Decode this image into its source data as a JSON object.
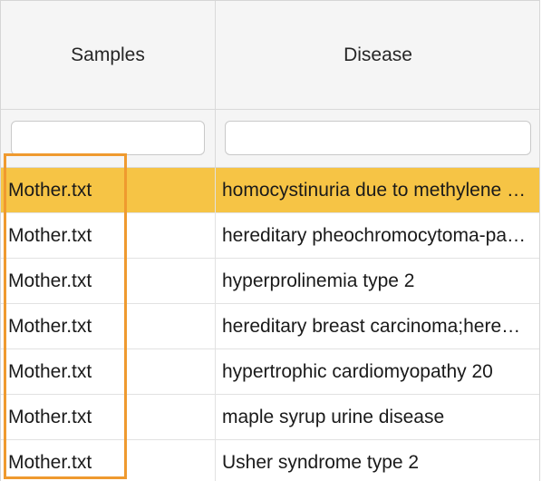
{
  "table": {
    "columns": [
      {
        "label": "Samples"
      },
      {
        "label": "Disease"
      }
    ],
    "filters": [
      {
        "value": "",
        "placeholder": ""
      },
      {
        "value": "",
        "placeholder": ""
      }
    ],
    "rows": [
      {
        "sample": "Mother.txt",
        "disease": "homocystinuria due to methylene tetrahydrofolate reductase deficiency",
        "selected": true
      },
      {
        "sample": "Mother.txt",
        "disease": "hereditary pheochromocytoma-paraganglioma",
        "selected": false
      },
      {
        "sample": "Mother.txt",
        "disease": "hyperprolinemia type 2",
        "selected": false
      },
      {
        "sample": "Mother.txt",
        "disease": "hereditary breast carcinoma;hereditary ovarian cancer",
        "selected": false
      },
      {
        "sample": "Mother.txt",
        "disease": "hypertrophic cardiomyopathy 20",
        "selected": false
      },
      {
        "sample": "Mother.txt",
        "disease": "maple syrup urine disease",
        "selected": false
      },
      {
        "sample": "Mother.txt",
        "disease": "Usher syndrome type 2",
        "selected": false
      }
    ]
  },
  "colors": {
    "selected_row": "#f6c445",
    "highlight_outline": "#ef9a2f"
  }
}
